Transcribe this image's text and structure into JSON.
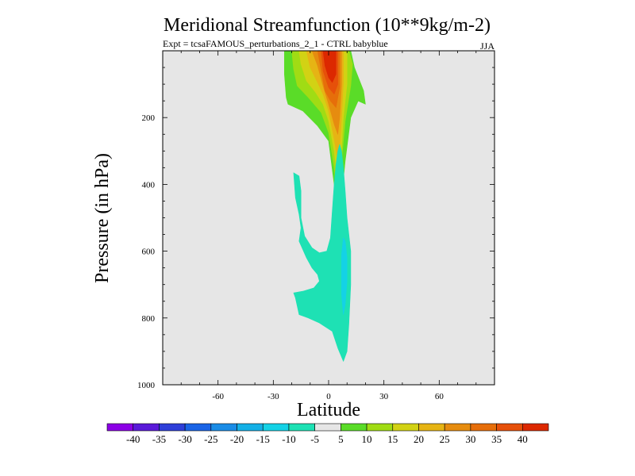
{
  "chart_data": {
    "type": "contour",
    "title": "Meridional Streamfunction (10**9kg/m-2)",
    "subtitle_left": "Expt = tcsaFAMOUS_perturbations_2_1 - CTRL babyblue",
    "subtitle_right": "JJA",
    "xlabel": "Latitude",
    "ylabel": "Pressure (in hPa)",
    "xlim": [
      -90,
      90
    ],
    "ylim": [
      1000,
      0
    ],
    "x_ticks": [
      -60,
      -30,
      0,
      30,
      60
    ],
    "y_ticks": [
      200,
      400,
      600,
      800,
      1000
    ],
    "colorbar": {
      "levels": [
        -40,
        -35,
        -30,
        -25,
        -20,
        -15,
        -10,
        -5,
        5,
        10,
        15,
        20,
        25,
        30,
        35,
        40
      ],
      "colors": [
        "#8c00e6",
        "#5a1ad9",
        "#2e3fd9",
        "#1a64e6",
        "#1a8ce6",
        "#14b0e6",
        "#14d2e6",
        "#1ee1b4",
        "#e6e6e6",
        "#5adc28",
        "#a0dc14",
        "#d2d214",
        "#e6b414",
        "#e68c0f",
        "#e66e0a",
        "#e6500a",
        "#dc2800"
      ]
    },
    "regions": [
      {
        "name": "positive-cell",
        "level_range": "5 to 10",
        "lat_range": [
          -25,
          20
        ],
        "pressure_range": [
          0,
          500
        ]
      },
      {
        "name": "positive-cell-core",
        "level_range": "35 to 40",
        "lat_range": [
          -5,
          5
        ],
        "pressure_range": [
          0,
          120
        ]
      },
      {
        "name": "negative-cell",
        "level_range": "-10 to -5",
        "lat_range": [
          -20,
          10
        ],
        "pressure_range": [
          280,
          930
        ]
      },
      {
        "name": "negative-cell-core",
        "level_range": "-15 to -10",
        "lat_range": [
          5,
          10
        ],
        "pressure_range": [
          550,
          800
        ]
      }
    ]
  },
  "colors": {
    "plot_background": "#e6e6e6",
    "page_background": "#ffffff"
  }
}
